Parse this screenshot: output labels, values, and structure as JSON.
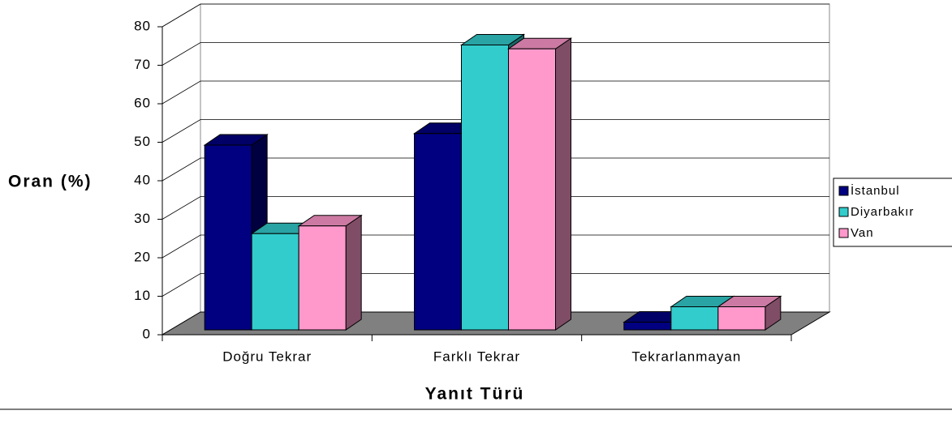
{
  "chart_data": {
    "type": "bar3d",
    "y_label": "Oran (%)",
    "x_label": "Yanıt Türü",
    "categories": [
      "Doğru Tekrar",
      "Farklı Tekrar",
      "Tekrarlanmayan"
    ],
    "series": [
      {
        "name": "İstanbul",
        "color": "#000080",
        "values": [
          48,
          51,
          2
        ]
      },
      {
        "name": "Diyarbakır",
        "color": "#33cccc",
        "values": [
          25,
          74,
          6
        ]
      },
      {
        "name": "Van",
        "color": "#ff99cc",
        "values": [
          27,
          73,
          6
        ]
      }
    ],
    "ylim": [
      0,
      80
    ],
    "yticks": [
      0,
      10,
      20,
      30,
      40,
      50,
      60,
      70,
      80
    ],
    "grid": true,
    "legend": "right"
  }
}
